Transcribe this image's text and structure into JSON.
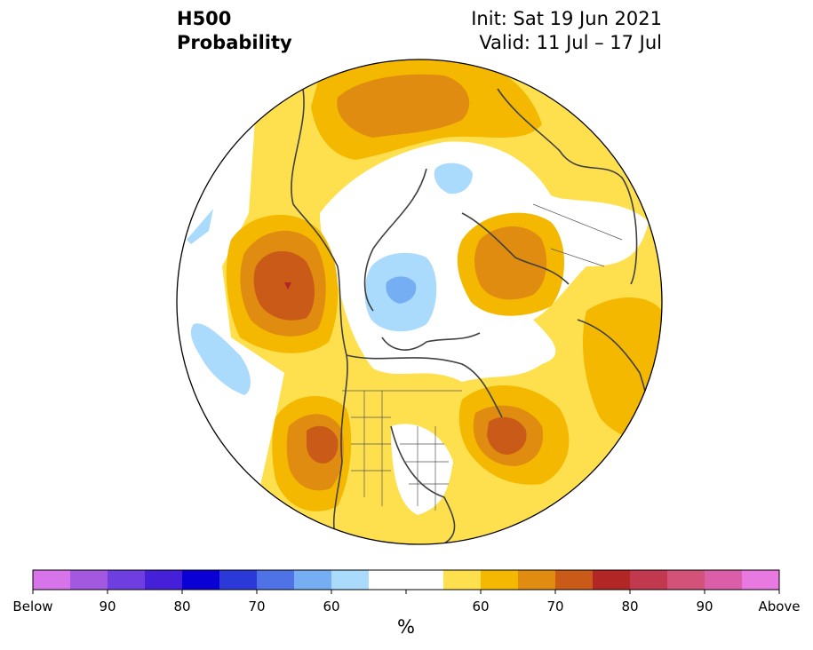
{
  "header": {
    "variable": "H500",
    "product": "Probability",
    "init": "Init: Sat 19 Jun 2021",
    "valid": "Valid: 11 Jul – 17 Jul"
  },
  "colorbar": {
    "unit": "%",
    "below_colors": [
      "#d774e9",
      "#a259e0",
      "#6f3ee0",
      "#4520d8",
      "#0a00d6",
      "#2b39d8",
      "#4f73e6",
      "#75aef3",
      "#aadbfc"
    ],
    "neutral_color": "#ffffff",
    "above_colors": [
      "#fee04f",
      "#f4b800",
      "#e08c10",
      "#c95a17",
      "#b32626",
      "#c2394f",
      "#d2527a",
      "#da5fa8",
      "#e879e0"
    ],
    "tick_labels": [
      "Below",
      "90",
      "80",
      "70",
      "60",
      "60",
      "70",
      "80",
      "90",
      "Above"
    ]
  },
  "map": {
    "projection": "north-polar-stereographic",
    "shading_colors": {
      "above_60": "#fee04f",
      "above_65": "#f4b800",
      "above_70": "#e08c10",
      "above_75": "#c95a17",
      "above_80": "#b32626",
      "below_60": "#aadbfc",
      "below_65": "#75aef3"
    }
  }
}
